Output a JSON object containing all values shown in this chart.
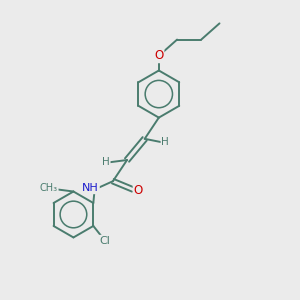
{
  "background_color": "#ebebeb",
  "bond_color": "#4a7c6e",
  "atom_colors": {
    "O": "#cc0000",
    "N": "#1a1acc",
    "Cl": "#4a7c6e",
    "C": "#4a7c6e",
    "H": "#4a7c6e"
  },
  "figsize": [
    3.0,
    3.0
  ],
  "dpi": 100
}
